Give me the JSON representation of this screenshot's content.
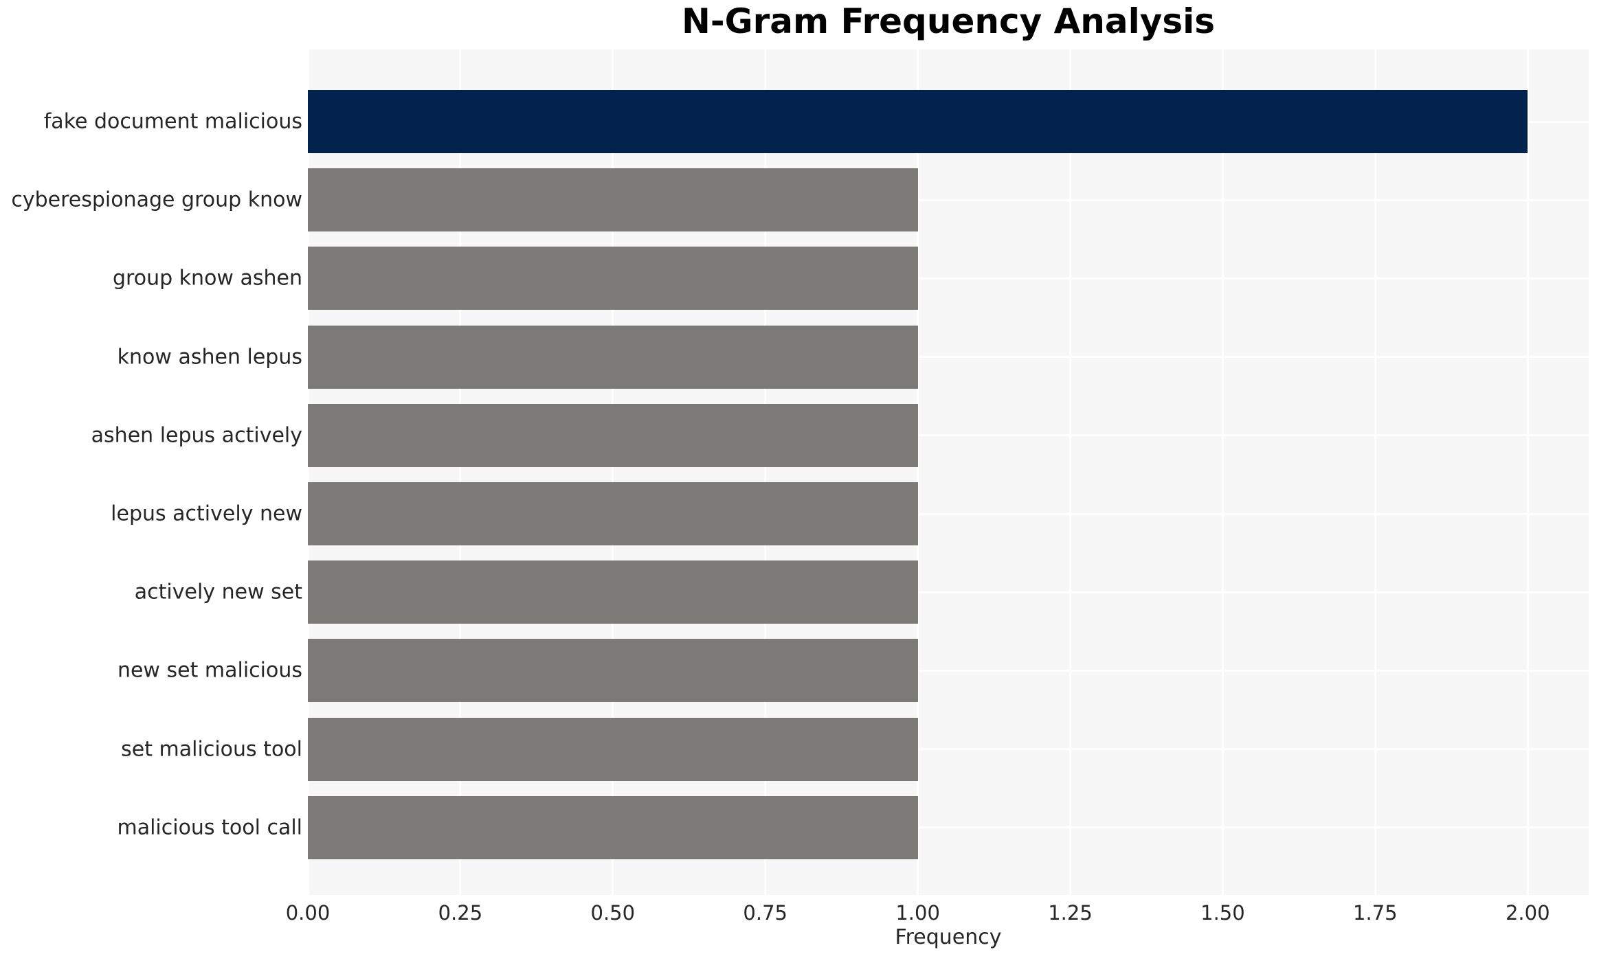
{
  "chart_data": {
    "type": "bar",
    "orientation": "horizontal",
    "title": "N-Gram Frequency Analysis",
    "xlabel": "Frequency",
    "ylabel": "",
    "categories": [
      "fake document malicious",
      "cyberespionage group know",
      "group know ashen",
      "know ashen lepus",
      "ashen lepus actively",
      "lepus actively new",
      "actively new set",
      "new set malicious",
      "set malicious tool",
      "malicious tool call"
    ],
    "values": [
      2,
      1,
      1,
      1,
      1,
      1,
      1,
      1,
      1,
      1
    ],
    "xlim": [
      0,
      2.1
    ],
    "xticks": [
      0,
      0.25,
      0.5,
      0.75,
      1.0,
      1.25,
      1.5,
      1.75,
      2.0
    ],
    "xtick_labels": [
      "0.00",
      "0.25",
      "0.50",
      "0.75",
      "1.00",
      "1.25",
      "1.50",
      "1.75",
      "2.00"
    ],
    "grid": true,
    "legend": false,
    "bar_colors": [
      "#02234e",
      "#7b7a76",
      "#7b7a76",
      "#7b7a76",
      "#7b7a76",
      "#7b7a76",
      "#7b7a76",
      "#7b7a76",
      "#7b7a76",
      "#7b7a76"
    ],
    "colors": {
      "highlight_bar": "#02234e",
      "default_bar": "#7b7a76",
      "plot_background": "#f7f7f7",
      "gridline": "#ffffff",
      "tick_text": "#262626",
      "title_text": "#000000"
    }
  }
}
